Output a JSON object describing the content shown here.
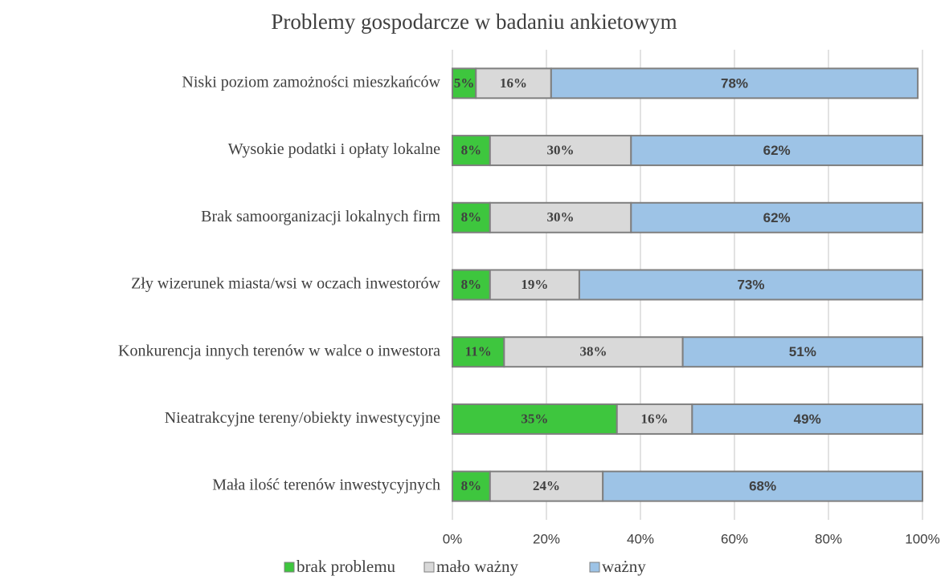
{
  "chart_data": {
    "type": "bar",
    "orientation": "horizontal",
    "stacked": true,
    "title": "Problemy gospodarcze w  badaniu ankietowym",
    "categories": [
      "Niski poziom zamożności mieszkańców",
      "Wysokie podatki i opłaty lokalne",
      "Brak samoorganizacji lokalnych firm",
      "Zły wizerunek miasta/wsi w oczach inwestorów",
      "Konkurencja innych terenów w walce o inwestora",
      "Nieatrakcyjne tereny/obiekty inwestycyjne",
      "Mała ilość terenów inwestycyjnych"
    ],
    "series": [
      {
        "name": "brak problemu",
        "color": "#3ec63e",
        "values": [
          5,
          8,
          8,
          8,
          11,
          35,
          8
        ],
        "value_labels": [
          "5%",
          "8%",
          "8%",
          "8%",
          "11%",
          "35%",
          "8%"
        ]
      },
      {
        "name": "mało ważny",
        "color": "#d9d9d9",
        "values": [
          16,
          30,
          30,
          19,
          38,
          16,
          24
        ],
        "value_labels": [
          "16%",
          "30%",
          "30%",
          "19%",
          "38%",
          "16%",
          "24%"
        ]
      },
      {
        "name": "ważny",
        "color": "#9dc3e6",
        "values": [
          78,
          62,
          62,
          73,
          51,
          49,
          68
        ],
        "value_labels": [
          "78%",
          "62%",
          "62%",
          "73%",
          "51%",
          "49%",
          "68%"
        ]
      }
    ],
    "xlim": [
      0,
      100
    ],
    "xticks": [
      {
        "value": 0,
        "label": "0%"
      },
      {
        "value": 20,
        "label": "20%"
      },
      {
        "value": 40,
        "label": "40%"
      },
      {
        "value": 60,
        "label": "60%"
      },
      {
        "value": 80,
        "label": "80%"
      },
      {
        "value": 100,
        "label": "100%"
      }
    ],
    "grid": true,
    "legend": "bottom"
  }
}
